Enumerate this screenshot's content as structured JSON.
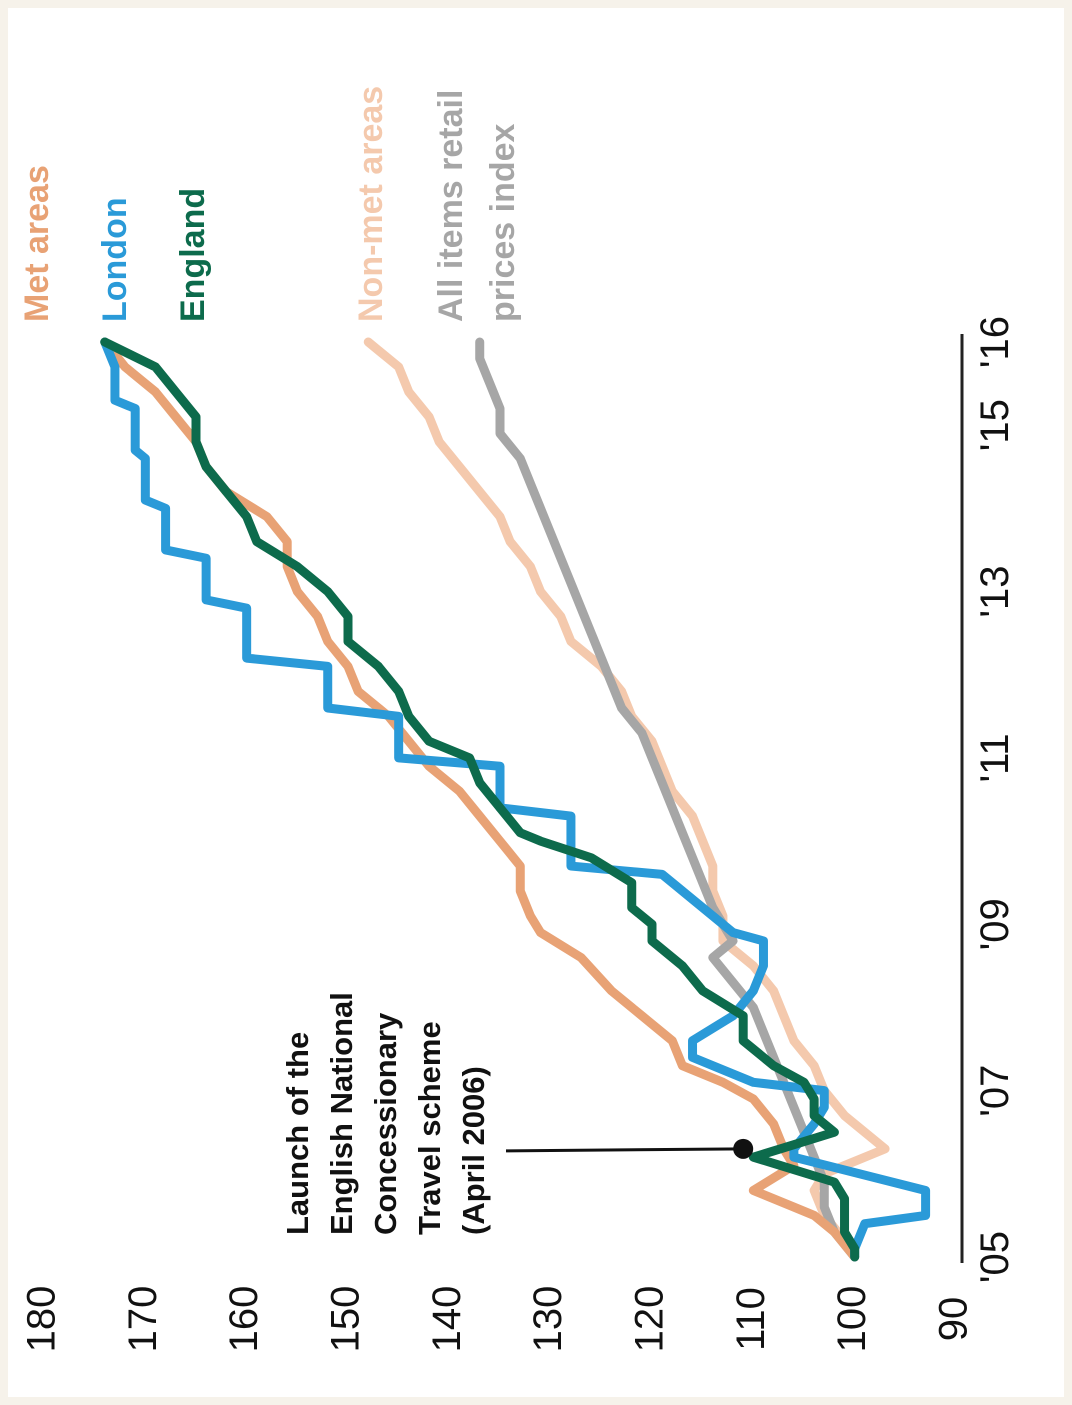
{
  "chart_data": {
    "type": "line",
    "title": "",
    "xlabel": "",
    "ylabel": "",
    "x_ticks": [
      "'05",
      "'07",
      "'09",
      "'11",
      "'13",
      "'15",
      "'16"
    ],
    "x_tick_values": [
      2005,
      2007,
      2009,
      2011,
      2013,
      2015,
      2016
    ],
    "y_ticks": [
      90,
      100,
      110,
      120,
      130,
      140,
      150,
      160,
      170,
      180
    ],
    "xlim": [
      2005,
      2016
    ],
    "ylim": [
      90,
      180
    ],
    "grid": false,
    "legend": "inline labels at right end of each series",
    "series": [
      {
        "name": "Met areas",
        "color": "#e8a275",
        "x": [
          2005.0,
          2005.3,
          2005.5,
          2005.6,
          2005.8,
          2006.1,
          2006.3,
          2006.6,
          2006.9,
          2007.1,
          2007.3,
          2007.6,
          2007.9,
          2008.2,
          2008.6,
          2008.9,
          2009.1,
          2009.4,
          2009.7,
          2010.0,
          2010.3,
          2010.6,
          2010.9,
          2011.2,
          2011.5,
          2011.8,
          2012.1,
          2012.4,
          2012.7,
          2013.0,
          2013.3,
          2013.6,
          2013.9,
          2014.2,
          2014.5,
          2014.8,
          2015.1,
          2015.4,
          2015.7,
          2016.0
        ],
        "values": [
          100,
          102,
          104,
          106,
          110,
          106,
          107,
          108,
          110,
          113,
          117,
          118,
          121,
          124,
          127,
          131,
          132,
          133,
          133,
          135,
          137,
          139,
          142,
          144,
          146,
          149,
          150,
          152,
          153,
          155,
          156,
          156,
          158,
          162,
          164,
          165,
          167,
          169,
          172,
          174
        ]
      },
      {
        "name": "London",
        "color": "#2a9ad8",
        "x": [
          2005.0,
          2005.1,
          2005.4,
          2005.5,
          2005.8,
          2006.2,
          2006.3,
          2006.6,
          2006.8,
          2007.0,
          2007.1,
          2007.4,
          2007.6,
          2007.9,
          2008.2,
          2008.5,
          2008.8,
          2008.9,
          2009.4,
          2009.6,
          2009.7,
          2010.3,
          2010.4,
          2010.9,
          2011.0,
          2011.5,
          2011.6,
          2012.1,
          2012.2,
          2012.8,
          2012.9,
          2013.4,
          2013.5,
          2014.0,
          2014.1,
          2014.6,
          2014.7,
          2015.2,
          2015.3,
          2015.7,
          2016.0
        ],
        "values": [
          100,
          100,
          99,
          93,
          93,
          106,
          106,
          104,
          103,
          103,
          110,
          116,
          116,
          112,
          110,
          109,
          109,
          112,
          117,
          119,
          128,
          128,
          135,
          135,
          145,
          145,
          152,
          152,
          160,
          160,
          164,
          164,
          168,
          168,
          170,
          170,
          171,
          171,
          173,
          173,
          174
        ]
      },
      {
        "name": "England",
        "color": "#0d6b4c",
        "x": [
          2005.0,
          2005.1,
          2005.3,
          2005.7,
          2005.9,
          2006.2,
          2006.5,
          2006.7,
          2006.9,
          2007.1,
          2007.3,
          2007.6,
          2007.9,
          2008.2,
          2008.5,
          2008.8,
          2009.0,
          2009.2,
          2009.5,
          2009.8,
          2010.0,
          2010.1,
          2010.4,
          2010.7,
          2011.0,
          2011.2,
          2011.5,
          2011.8,
          2012.1,
          2012.4,
          2012.7,
          2013.0,
          2013.3,
          2013.6,
          2013.9,
          2014.2,
          2014.5,
          2014.8,
          2015.1,
          2015.4,
          2015.7,
          2016.0
        ],
        "values": [
          100,
          100,
          101,
          101,
          102,
          110,
          102,
          104,
          104,
          105,
          108,
          111,
          111,
          115,
          117,
          120,
          120,
          122,
          122,
          126,
          131,
          133,
          135,
          137,
          138,
          142,
          144,
          145,
          147,
          150,
          150,
          152,
          155,
          159,
          160,
          162,
          164,
          165,
          165,
          167,
          169,
          174
        ]
      },
      {
        "name": "Non-met areas",
        "color": "#f4c9ad",
        "x": [
          2005.0,
          2005.2,
          2005.5,
          2005.8,
          2006.0,
          2006.3,
          2006.5,
          2006.7,
          2007.0,
          2007.3,
          2007.6,
          2007.9,
          2008.2,
          2008.5,
          2008.8,
          2009.1,
          2009.4,
          2009.7,
          2010.0,
          2010.3,
          2010.6,
          2010.9,
          2011.2,
          2011.5,
          2011.8,
          2012.1,
          2012.4,
          2012.7,
          2013.0,
          2013.3,
          2013.6,
          2013.9,
          2014.2,
          2014.5,
          2014.8,
          2015.1,
          2015.4,
          2015.7,
          2016.0
        ],
        "values": [
          100,
          101,
          103,
          104,
          103,
          97,
          99,
          101,
          103,
          104,
          106,
          107,
          108,
          110,
          113,
          113,
          114,
          114,
          115,
          116,
          118,
          119,
          120,
          122,
          123,
          125,
          128,
          129,
          131,
          132,
          134,
          135,
          137,
          139,
          141,
          142,
          144,
          145,
          148
        ]
      },
      {
        "name": "All items retail prices index",
        "color": "#a6a6a6",
        "x": [
          2005.0,
          2005.3,
          2005.6,
          2005.9,
          2006.2,
          2006.5,
          2006.8,
          2007.1,
          2007.4,
          2007.7,
          2008.0,
          2008.3,
          2008.6,
          2008.8,
          2009.0,
          2009.2,
          2009.5,
          2009.8,
          2010.1,
          2010.4,
          2010.7,
          2011.0,
          2011.3,
          2011.6,
          2011.9,
          2012.2,
          2012.5,
          2012.8,
          2013.1,
          2013.4,
          2013.7,
          2014.0,
          2014.3,
          2014.6,
          2014.9,
          2015.2,
          2015.5,
          2015.8,
          2016.0
        ],
        "values": [
          100,
          102,
          103,
          103,
          104,
          105,
          106,
          107,
          108,
          109,
          110,
          112,
          114,
          112,
          113,
          114,
          115,
          116,
          117,
          118,
          119,
          120,
          121,
          123,
          124,
          125,
          126,
          127,
          128,
          129,
          130,
          131,
          132,
          133,
          135,
          135,
          136,
          137,
          137
        ]
      }
    ],
    "annotation": {
      "lines": [
        "Launch of the",
        "English National",
        "Concessionary",
        "Travel scheme",
        "(April 2006)"
      ],
      "x": 2006.3,
      "y": 111
    }
  }
}
